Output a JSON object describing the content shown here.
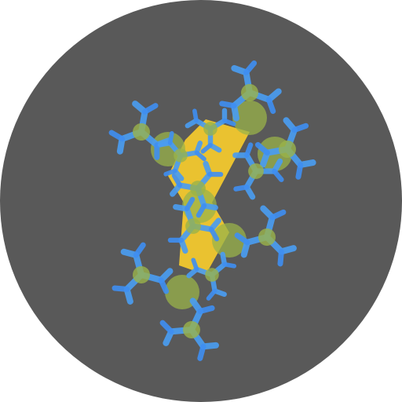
{
  "icon": {
    "name": "fractal-pinwheel-logo",
    "colors": {
      "background_disc": "#595959",
      "core": "#f2c82e",
      "mid": "#9ab34a",
      "arm": "#4a9cf0",
      "arm_tip": "#3f8ff2"
    }
  }
}
